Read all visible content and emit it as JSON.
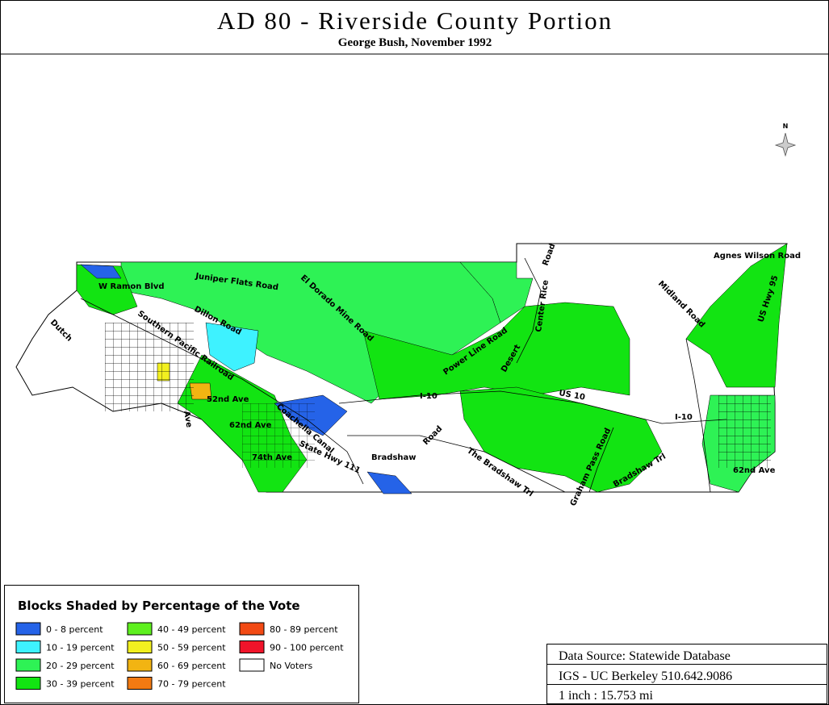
{
  "header": {
    "title": "AD 80 - Riverside County Portion",
    "subtitle": "George Bush, November 1992"
  },
  "map": {
    "north_label": "N",
    "road_labels": [
      "W Ramon Blvd",
      "Juniper Flats Road",
      "El Dorado Mine Road",
      "Dillon Road",
      "Southern Pacific Railroad",
      "Dutch",
      "Power Line Road",
      "Desert",
      "Center Rice",
      "Road",
      "I-10",
      "US 10",
      "I-10",
      "Midland Road",
      "Agnes Wilson Road",
      "US Hwy 95",
      "Bradshaw",
      "Road",
      "The Bradshaw Trl",
      "Graham Pass Road",
      "Bradshaw Trl",
      "52nd Ave",
      "62nd Ave",
      "Coachella Canal",
      "State Hwy 111",
      "74th Ave",
      "62nd Ave",
      "Ave"
    ]
  },
  "legend": {
    "title": "Blocks Shaded by Percentage of the Vote",
    "items": [
      {
        "label": "0 - 8 percent",
        "color": "#2563e8"
      },
      {
        "label": "10 - 19 percent",
        "color": "#3ef2ff"
      },
      {
        "label": "20 - 29 percent",
        "color": "#2ef255"
      },
      {
        "label": "30 - 39 percent",
        "color": "#12e412"
      },
      {
        "label": "40 - 49 percent",
        "color": "#5ef01e"
      },
      {
        "label": "50 - 59 percent",
        "color": "#f2f020"
      },
      {
        "label": "60 - 69 percent",
        "color": "#f2b412"
      },
      {
        "label": "70 - 79 percent",
        "color": "#f27a12"
      },
      {
        "label": "80 - 89 percent",
        "color": "#f24a14"
      },
      {
        "label": "90 - 100 percent",
        "color": "#f0142a"
      },
      {
        "label": "No Voters",
        "color": "#ffffff"
      }
    ]
  },
  "source": {
    "lines": [
      "Data Source: Statewide Database",
      "IGS - UC Berkeley 510.642.9086",
      "1 inch : 15.753 mi"
    ]
  }
}
